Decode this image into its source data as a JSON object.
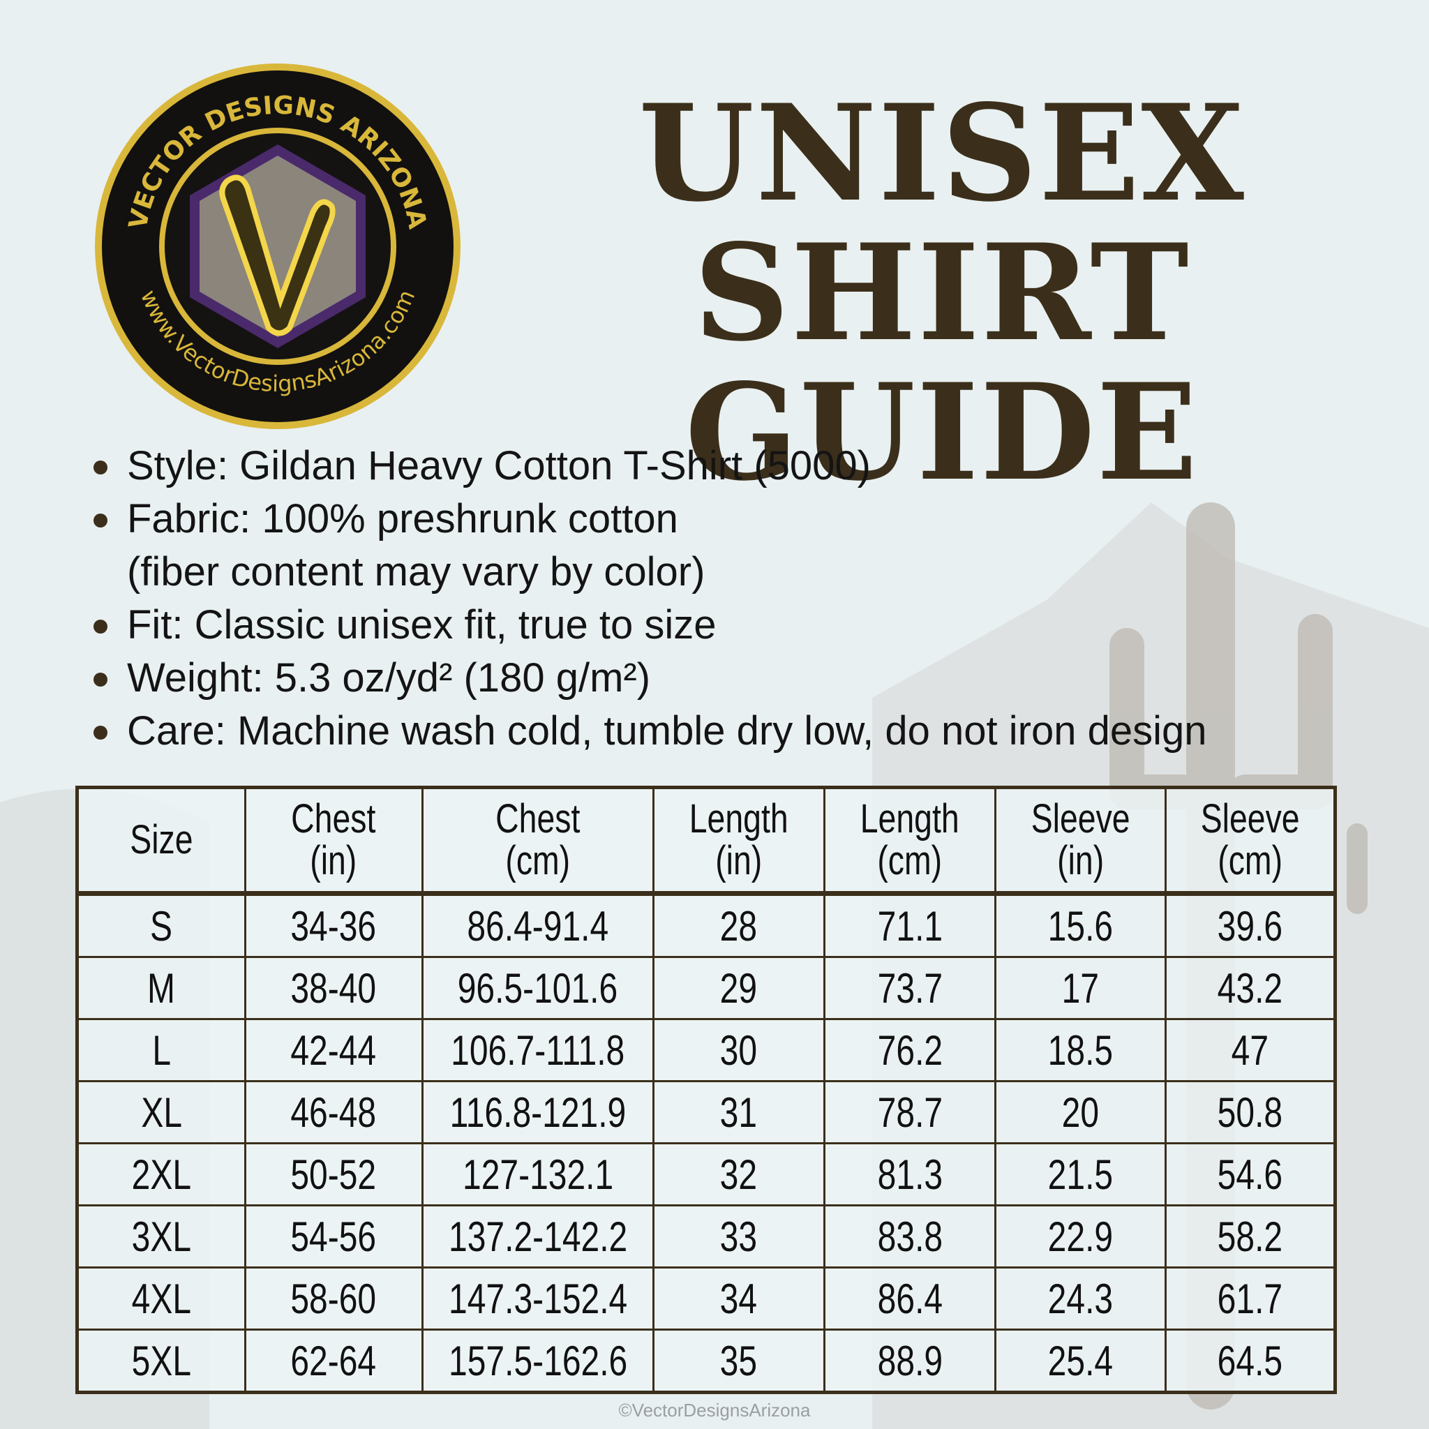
{
  "logo": {
    "top_text": "VECTOR DESIGNS ARIZONA",
    "bottom_text": "www.VectorDesignsArizona.com",
    "letter": "V",
    "colors": {
      "gold": "#d9b73a",
      "ring": "#111111",
      "hex": "#4a2a6b"
    }
  },
  "title": {
    "line1": "UNISEX",
    "line2": "SHIRT GUIDE",
    "color": "#3b2f1b"
  },
  "bullets": [
    {
      "text": "Style: Gildan Heavy Cotton T-Shirt (5000)"
    },
    {
      "text": "Fabric: 100% preshrunk cotton",
      "cont": "(fiber content may vary by color)"
    },
    {
      "text": "Fit: Classic unisex fit, true to size"
    },
    {
      "text": "Weight: 5.3 oz/yd² (180 g/m²)"
    },
    {
      "text": "Care: Machine wash cold, tumble dry low, do not iron design"
    }
  ],
  "table": {
    "headers": [
      [
        "Size",
        ""
      ],
      [
        "Chest",
        "(in)"
      ],
      [
        "Chest",
        "(cm)"
      ],
      [
        "Length",
        "(in)"
      ],
      [
        "Length",
        "(cm)"
      ],
      [
        "Sleeve",
        "(in)"
      ],
      [
        "Sleeve",
        "(cm)"
      ]
    ],
    "rows": [
      [
        "S",
        "34-36",
        "86.4-91.4",
        "28",
        "71.1",
        "15.6",
        "39.6"
      ],
      [
        "M",
        "38-40",
        "96.5-101.6",
        "29",
        "73.7",
        "17",
        "43.2"
      ],
      [
        "L",
        "42-44",
        "106.7-111.8",
        "30",
        "76.2",
        "18.5",
        "47"
      ],
      [
        "XL",
        "46-48",
        "116.8-121.9",
        "31",
        "78.7",
        "20",
        "50.8"
      ],
      [
        "2XL",
        "50-52",
        "127-132.1",
        "32",
        "81.3",
        "21.5",
        "54.6"
      ],
      [
        "3XL",
        "54-56",
        "137.2-142.2",
        "33",
        "83.8",
        "22.9",
        "58.2"
      ],
      [
        "4XL",
        "58-60",
        "147.3-152.4",
        "34",
        "86.4",
        "24.3",
        "61.7"
      ],
      [
        "5XL",
        "62-64",
        "157.5-162.6",
        "35",
        "88.9",
        "25.4",
        "64.5"
      ]
    ]
  },
  "footer": {
    "copyright": "©VectorDesignsArizona"
  }
}
